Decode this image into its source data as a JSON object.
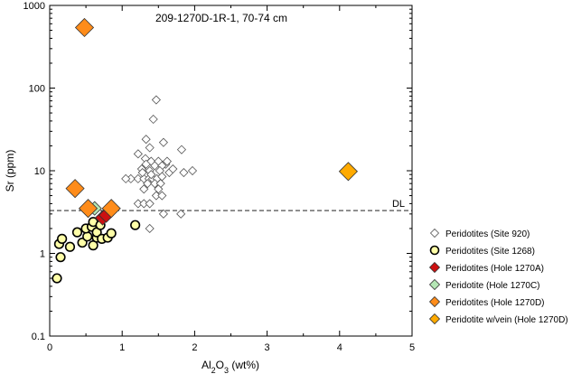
{
  "chart_data": {
    "type": "scatter",
    "title": "209-1270D-1R-1, 70-74 cm",
    "xlabel": {
      "base": "Al",
      "sub1": "2",
      "mid": "O",
      "sub2": "3",
      "tail": " (wt%)"
    },
    "ylabel": "Sr (ppm)",
    "xlim": [
      0,
      5
    ],
    "ylim": [
      0.1,
      1000
    ],
    "y_scale": "log",
    "x_ticks": [
      "0",
      "1",
      "2",
      "3",
      "4",
      "5"
    ],
    "y_ticks": [
      "0.1",
      "1",
      "10",
      "100",
      "1000"
    ],
    "grid": false,
    "legend_position": "right",
    "reference_line": {
      "label": "DL",
      "y": 3.3
    },
    "series": [
      {
        "name": "Peridotites (Site 920)",
        "marker": "diamond-open",
        "color": "#ffffff",
        "points": [
          [
            1.47,
            72
          ],
          [
            1.43,
            42
          ],
          [
            1.33,
            24
          ],
          [
            1.38,
            19
          ],
          [
            1.57,
            22
          ],
          [
            1.22,
            16
          ],
          [
            1.32,
            14
          ],
          [
            1.4,
            13
          ],
          [
            1.5,
            13
          ],
          [
            1.6,
            12
          ],
          [
            1.33,
            12
          ],
          [
            1.45,
            11.5
          ],
          [
            1.55,
            11.5
          ],
          [
            1.27,
            10.5
          ],
          [
            1.38,
            10
          ],
          [
            1.52,
            10
          ],
          [
            1.65,
            9.5
          ],
          [
            1.12,
            8
          ],
          [
            1.22,
            8
          ],
          [
            1.3,
            8
          ],
          [
            1.37,
            8
          ],
          [
            1.42,
            8
          ],
          [
            1.48,
            8
          ],
          [
            1.55,
            8.5
          ],
          [
            1.35,
            7
          ],
          [
            1.45,
            7
          ],
          [
            1.53,
            7
          ],
          [
            1.3,
            6
          ],
          [
            1.5,
            6
          ],
          [
            1.47,
            5
          ],
          [
            1.55,
            5
          ],
          [
            1.82,
            18
          ],
          [
            1.7,
            10.5
          ],
          [
            1.97,
            10
          ],
          [
            1.85,
            9.5
          ],
          [
            1.57,
            3
          ],
          [
            1.81,
            3
          ],
          [
            1.38,
            2
          ],
          [
            1.22,
            4
          ],
          [
            1.3,
            4
          ],
          [
            1.38,
            4
          ],
          [
            1.62,
            13
          ],
          [
            1.05,
            8
          ],
          [
            1.4,
            9
          ],
          [
            1.28,
            9.5
          ]
        ]
      },
      {
        "name": "Peridotites (Site 1268)",
        "marker": "circle",
        "color": "#ffffa8",
        "points": [
          [
            0.1,
            0.5
          ],
          [
            0.15,
            0.9
          ],
          [
            0.13,
            1.3
          ],
          [
            0.17,
            1.5
          ],
          [
            0.28,
            1.2
          ],
          [
            0.38,
            1.8
          ],
          [
            0.45,
            1.35
          ],
          [
            0.52,
            1.6
          ],
          [
            0.6,
            1.25
          ],
          [
            0.65,
            1.55
          ],
          [
            0.5,
            2.0
          ],
          [
            0.58,
            2.1
          ],
          [
            0.65,
            1.8
          ],
          [
            0.72,
            1.5
          ],
          [
            0.8,
            1.55
          ],
          [
            0.85,
            1.75
          ],
          [
            0.6,
            2.4
          ],
          [
            0.7,
            2.2
          ],
          [
            1.18,
            2.2
          ]
        ]
      },
      {
        "name": "Peridotites (Hole 1270A)",
        "marker": "diamond",
        "color": "#cc1111",
        "points": [
          [
            0.73,
            2.7
          ],
          [
            0.78,
            2.9
          ]
        ]
      },
      {
        "name": "Peridotite (Hole 1270C)",
        "marker": "diamond",
        "color": "#b4e6b4",
        "points": [
          [
            0.62,
            3.5
          ]
        ]
      },
      {
        "name": "Peridotites (Hole 1270D)",
        "marker": "diamond",
        "color": "#ff8c1a",
        "points": [
          [
            0.48,
            540
          ],
          [
            0.35,
            6.1
          ],
          [
            0.53,
            3.5
          ],
          [
            0.85,
            3.5
          ]
        ]
      },
      {
        "name": "Peridotite w/vein (Hole 1270D)",
        "marker": "diamond",
        "color": "#ffaa00",
        "points": [
          [
            4.12,
            9.8
          ]
        ]
      }
    ]
  }
}
